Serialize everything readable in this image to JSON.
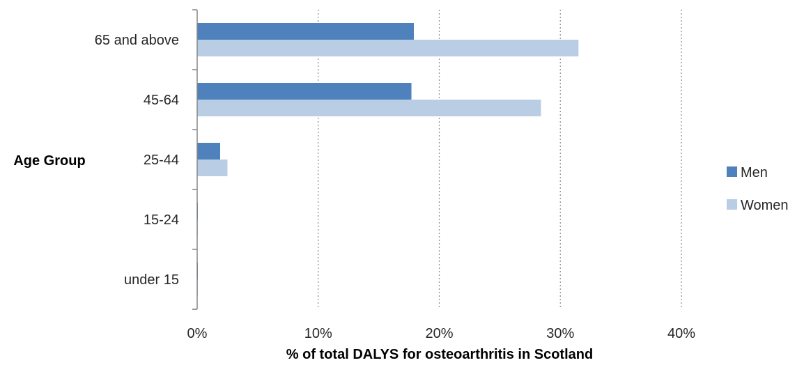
{
  "chart_data": {
    "type": "bar",
    "orientation": "horizontal",
    "categories": [
      "65 and above",
      "45-64",
      "25-44",
      "15-24",
      "under 15"
    ],
    "series": [
      {
        "name": "Men",
        "color": "#4f81bd",
        "values": [
          17.9,
          17.7,
          1.9,
          0.05,
          0.02
        ]
      },
      {
        "name": "Women",
        "color": "#b9cde5",
        "values": [
          31.5,
          28.4,
          2.5,
          0.05,
          0.02
        ]
      }
    ],
    "xlabel": "% of total DALYS for osteoarthritis in Scotland",
    "ylabel": "Age Group",
    "xlim": [
      0,
      40
    ],
    "xticks": [
      "0%",
      "10%",
      "20%",
      "30%",
      "40%"
    ],
    "grid": "vertical-dotted",
    "legend_position": "right"
  }
}
